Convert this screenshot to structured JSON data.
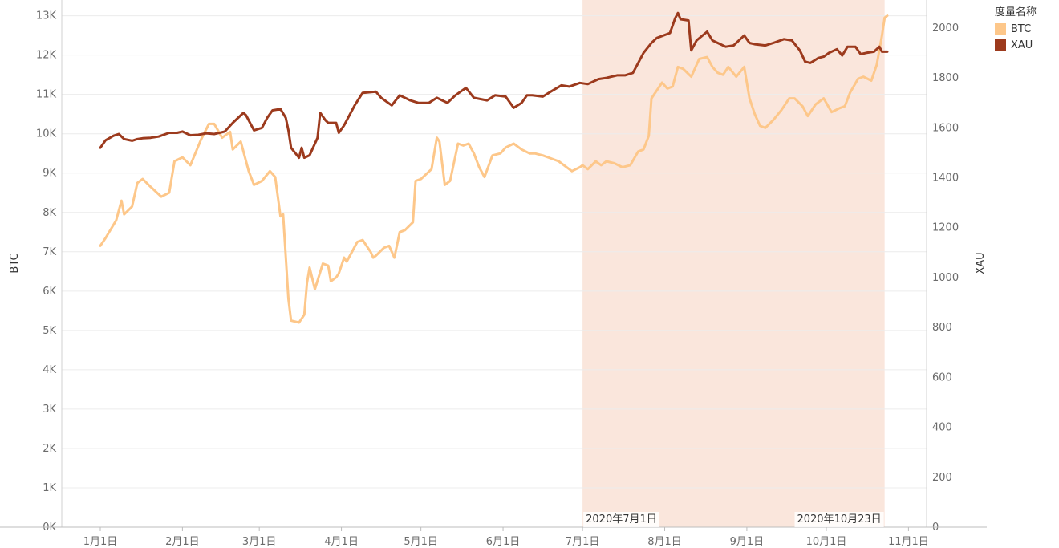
{
  "legend": {
    "title": "度量名称",
    "items": [
      {
        "label": "BTC",
        "color": "#fdc78a"
      },
      {
        "label": "XAU",
        "color": "#9c3a1d"
      }
    ]
  },
  "highlight": {
    "start_label": "2020年7月1日",
    "end_label": "2020年10月23日",
    "color": "#fae6dc"
  },
  "chart_data": {
    "type": "line",
    "title": "",
    "xlabel": "",
    "x_ticks": [
      "1月1日",
      "2月1日",
      "3月1日",
      "4月1日",
      "5月1日",
      "6月1日",
      "7月1日",
      "8月1日",
      "9月1日",
      "10月1日",
      "11月1日"
    ],
    "y_left": {
      "label": "BTC",
      "ticks": [
        "0K",
        "1K",
        "2K",
        "3K",
        "4K",
        "5K",
        "6K",
        "7K",
        "8K",
        "9K",
        "10K",
        "11K",
        "12K",
        "13K"
      ],
      "range": [
        0,
        13400
      ]
    },
    "y_right": {
      "label": "XAU",
      "ticks": [
        "0",
        "200",
        "400",
        "600",
        "800",
        "1000",
        "1200",
        "1400",
        "1600",
        "1800",
        "2000"
      ],
      "range": [
        0,
        2112
      ]
    },
    "highlight_range": [
      "2020-07-01",
      "2020-10-23"
    ],
    "series": [
      {
        "name": "BTC",
        "axis": "left",
        "color": "#fdc78a",
        "points": [
          [
            "2020-01-01",
            7150
          ],
          [
            "2020-01-03",
            7350
          ],
          [
            "2020-01-07",
            7800
          ],
          [
            "2020-01-09",
            8300
          ],
          [
            "2020-01-10",
            7950
          ],
          [
            "2020-01-13",
            8150
          ],
          [
            "2020-01-15",
            8750
          ],
          [
            "2020-01-17",
            8850
          ],
          [
            "2020-01-20",
            8650
          ],
          [
            "2020-01-24",
            8400
          ],
          [
            "2020-01-27",
            8500
          ],
          [
            "2020-01-29",
            9300
          ],
          [
            "2020-02-01",
            9400
          ],
          [
            "2020-02-04",
            9200
          ],
          [
            "2020-02-08",
            9850
          ],
          [
            "2020-02-11",
            10250
          ],
          [
            "2020-02-13",
            10250
          ],
          [
            "2020-02-16",
            9900
          ],
          [
            "2020-02-19",
            10050
          ],
          [
            "2020-02-20",
            9600
          ],
          [
            "2020-02-23",
            9800
          ],
          [
            "2020-02-26",
            9050
          ],
          [
            "2020-02-28",
            8700
          ],
          [
            "2020-03-02",
            8800
          ],
          [
            "2020-03-05",
            9050
          ],
          [
            "2020-03-07",
            8900
          ],
          [
            "2020-03-09",
            7900
          ],
          [
            "2020-03-10",
            7950
          ],
          [
            "2020-03-12",
            5800
          ],
          [
            "2020-03-13",
            5250
          ],
          [
            "2020-03-16",
            5200
          ],
          [
            "2020-03-18",
            5400
          ],
          [
            "2020-03-19",
            6200
          ],
          [
            "2020-03-20",
            6600
          ],
          [
            "2020-03-22",
            6050
          ],
          [
            "2020-03-25",
            6700
          ],
          [
            "2020-03-27",
            6650
          ],
          [
            "2020-03-28",
            6250
          ],
          [
            "2020-03-30",
            6350
          ],
          [
            "2020-03-31",
            6450
          ],
          [
            "2020-04-02",
            6850
          ],
          [
            "2020-04-03",
            6750
          ],
          [
            "2020-04-07",
            7250
          ],
          [
            "2020-04-09",
            7300
          ],
          [
            "2020-04-12",
            7000
          ],
          [
            "2020-04-13",
            6850
          ],
          [
            "2020-04-14",
            6900
          ],
          [
            "2020-04-17",
            7100
          ],
          [
            "2020-04-19",
            7150
          ],
          [
            "2020-04-21",
            6850
          ],
          [
            "2020-04-23",
            7500
          ],
          [
            "2020-04-25",
            7550
          ],
          [
            "2020-04-28",
            7750
          ],
          [
            "2020-04-29",
            8800
          ],
          [
            "2020-05-01",
            8850
          ],
          [
            "2020-05-05",
            9100
          ],
          [
            "2020-05-07",
            9900
          ],
          [
            "2020-05-08",
            9800
          ],
          [
            "2020-05-10",
            8700
          ],
          [
            "2020-05-12",
            8800
          ],
          [
            "2020-05-15",
            9750
          ],
          [
            "2020-05-17",
            9700
          ],
          [
            "2020-05-19",
            9750
          ],
          [
            "2020-05-21",
            9500
          ],
          [
            "2020-05-23",
            9150
          ],
          [
            "2020-05-25",
            8900
          ],
          [
            "2020-05-28",
            9450
          ],
          [
            "2020-05-31",
            9500
          ],
          [
            "2020-06-02",
            9650
          ],
          [
            "2020-06-05",
            9750
          ],
          [
            "2020-06-08",
            9600
          ],
          [
            "2020-06-11",
            9500
          ],
          [
            "2020-06-13",
            9500
          ],
          [
            "2020-06-16",
            9450
          ],
          [
            "2020-06-18",
            9400
          ],
          [
            "2020-06-22",
            9300
          ],
          [
            "2020-06-25",
            9150
          ],
          [
            "2020-06-27",
            9050
          ],
          [
            "2020-06-30",
            9150
          ],
          [
            "2020-07-01",
            9200
          ],
          [
            "2020-07-03",
            9100
          ],
          [
            "2020-07-06",
            9300
          ],
          [
            "2020-07-08",
            9200
          ],
          [
            "2020-07-10",
            9300
          ],
          [
            "2020-07-13",
            9250
          ],
          [
            "2020-07-16",
            9150
          ],
          [
            "2020-07-19",
            9200
          ],
          [
            "2020-07-22",
            9550
          ],
          [
            "2020-07-24",
            9600
          ],
          [
            "2020-07-26",
            9950
          ],
          [
            "2020-07-27",
            10900
          ],
          [
            "2020-07-29",
            11100
          ],
          [
            "2020-07-31",
            11300
          ],
          [
            "2020-08-02",
            11150
          ],
          [
            "2020-08-04",
            11200
          ],
          [
            "2020-08-06",
            11700
          ],
          [
            "2020-08-08",
            11650
          ],
          [
            "2020-08-11",
            11450
          ],
          [
            "2020-08-14",
            11900
          ],
          [
            "2020-08-17",
            11950
          ],
          [
            "2020-08-19",
            11700
          ],
          [
            "2020-08-21",
            11550
          ],
          [
            "2020-08-23",
            11500
          ],
          [
            "2020-08-25",
            11700
          ],
          [
            "2020-08-28",
            11450
          ],
          [
            "2020-08-31",
            11700
          ],
          [
            "2020-09-02",
            10900
          ],
          [
            "2020-09-04",
            10500
          ],
          [
            "2020-09-06",
            10200
          ],
          [
            "2020-09-08",
            10150
          ],
          [
            "2020-09-11",
            10350
          ],
          [
            "2020-09-14",
            10600
          ],
          [
            "2020-09-17",
            10900
          ],
          [
            "2020-09-19",
            10900
          ],
          [
            "2020-09-22",
            10700
          ],
          [
            "2020-09-24",
            10450
          ],
          [
            "2020-09-27",
            10750
          ],
          [
            "2020-09-30",
            10900
          ],
          [
            "2020-10-03",
            10550
          ],
          [
            "2020-10-06",
            10650
          ],
          [
            "2020-10-08",
            10700
          ],
          [
            "2020-10-10",
            11050
          ],
          [
            "2020-10-13",
            11400
          ],
          [
            "2020-10-15",
            11450
          ],
          [
            "2020-10-18",
            11350
          ],
          [
            "2020-10-20",
            11750
          ],
          [
            "2020-10-22",
            12500
          ],
          [
            "2020-10-23",
            12950
          ],
          [
            "2020-10-24",
            13000
          ]
        ]
      },
      {
        "name": "XAU",
        "axis": "right",
        "color": "#9c3a1d",
        "points": [
          [
            "2020-01-01",
            1520
          ],
          [
            "2020-01-03",
            1550
          ],
          [
            "2020-01-06",
            1568
          ],
          [
            "2020-01-08",
            1575
          ],
          [
            "2020-01-10",
            1555
          ],
          [
            "2020-01-13",
            1548
          ],
          [
            "2020-01-15",
            1555
          ],
          [
            "2020-01-17",
            1558
          ],
          [
            "2020-01-20",
            1560
          ],
          [
            "2020-01-23",
            1565
          ],
          [
            "2020-01-27",
            1580
          ],
          [
            "2020-01-30",
            1580
          ],
          [
            "2020-02-01",
            1585
          ],
          [
            "2020-02-04",
            1570
          ],
          [
            "2020-02-07",
            1572
          ],
          [
            "2020-02-10",
            1578
          ],
          [
            "2020-02-13",
            1575
          ],
          [
            "2020-02-17",
            1585
          ],
          [
            "2020-02-20",
            1620
          ],
          [
            "2020-02-24",
            1660
          ],
          [
            "2020-02-25",
            1650
          ],
          [
            "2020-02-28",
            1590
          ],
          [
            "2020-03-02",
            1600
          ],
          [
            "2020-03-04",
            1640
          ],
          [
            "2020-03-06",
            1670
          ],
          [
            "2020-03-09",
            1675
          ],
          [
            "2020-03-11",
            1640
          ],
          [
            "2020-03-12",
            1590
          ],
          [
            "2020-03-13",
            1520
          ],
          [
            "2020-03-16",
            1480
          ],
          [
            "2020-03-17",
            1520
          ],
          [
            "2020-03-18",
            1480
          ],
          [
            "2020-03-20",
            1490
          ],
          [
            "2020-03-23",
            1560
          ],
          [
            "2020-03-24",
            1660
          ],
          [
            "2020-03-26",
            1630
          ],
          [
            "2020-03-27",
            1620
          ],
          [
            "2020-03-30",
            1620
          ],
          [
            "2020-03-31",
            1580
          ],
          [
            "2020-04-02",
            1610
          ],
          [
            "2020-04-06",
            1690
          ],
          [
            "2020-04-09",
            1740
          ],
          [
            "2020-04-14",
            1745
          ],
          [
            "2020-04-16",
            1720
          ],
          [
            "2020-04-20",
            1690
          ],
          [
            "2020-04-23",
            1730
          ],
          [
            "2020-04-27",
            1710
          ],
          [
            "2020-04-30",
            1700
          ],
          [
            "2020-05-04",
            1700
          ],
          [
            "2020-05-07",
            1720
          ],
          [
            "2020-05-11",
            1700
          ],
          [
            "2020-05-14",
            1730
          ],
          [
            "2020-05-18",
            1760
          ],
          [
            "2020-05-21",
            1720
          ],
          [
            "2020-05-26",
            1710
          ],
          [
            "2020-05-29",
            1730
          ],
          [
            "2020-06-02",
            1725
          ],
          [
            "2020-06-05",
            1680
          ],
          [
            "2020-06-08",
            1700
          ],
          [
            "2020-06-10",
            1730
          ],
          [
            "2020-06-12",
            1730
          ],
          [
            "2020-06-16",
            1725
          ],
          [
            "2020-06-19",
            1745
          ],
          [
            "2020-06-23",
            1770
          ],
          [
            "2020-06-26",
            1765
          ],
          [
            "2020-06-30",
            1780
          ],
          [
            "2020-07-03",
            1775
          ],
          [
            "2020-07-07",
            1795
          ],
          [
            "2020-07-10",
            1800
          ],
          [
            "2020-07-14",
            1810
          ],
          [
            "2020-07-17",
            1810
          ],
          [
            "2020-07-20",
            1820
          ],
          [
            "2020-07-22",
            1860
          ],
          [
            "2020-07-24",
            1900
          ],
          [
            "2020-07-27",
            1940
          ],
          [
            "2020-07-29",
            1960
          ],
          [
            "2020-08-03",
            1980
          ],
          [
            "2020-08-05",
            2040
          ],
          [
            "2020-08-06",
            2060
          ],
          [
            "2020-08-07",
            2035
          ],
          [
            "2020-08-10",
            2030
          ],
          [
            "2020-08-11",
            1910
          ],
          [
            "2020-08-13",
            1950
          ],
          [
            "2020-08-17",
            1985
          ],
          [
            "2020-08-19",
            1950
          ],
          [
            "2020-08-21",
            1940
          ],
          [
            "2020-08-24",
            1925
          ],
          [
            "2020-08-27",
            1930
          ],
          [
            "2020-08-31",
            1970
          ],
          [
            "2020-09-02",
            1940
          ],
          [
            "2020-09-04",
            1935
          ],
          [
            "2020-09-08",
            1930
          ],
          [
            "2020-09-11",
            1940
          ],
          [
            "2020-09-15",
            1955
          ],
          [
            "2020-09-18",
            1950
          ],
          [
            "2020-09-21",
            1910
          ],
          [
            "2020-09-23",
            1865
          ],
          [
            "2020-09-25",
            1860
          ],
          [
            "2020-09-28",
            1880
          ],
          [
            "2020-09-30",
            1885
          ],
          [
            "2020-10-02",
            1900
          ],
          [
            "2020-10-05",
            1915
          ],
          [
            "2020-10-07",
            1890
          ],
          [
            "2020-10-09",
            1925
          ],
          [
            "2020-10-12",
            1925
          ],
          [
            "2020-10-14",
            1895
          ],
          [
            "2020-10-16",
            1900
          ],
          [
            "2020-10-19",
            1905
          ],
          [
            "2020-10-21",
            1925
          ],
          [
            "2020-10-22",
            1905
          ],
          [
            "2020-10-24",
            1905
          ]
        ]
      }
    ]
  }
}
